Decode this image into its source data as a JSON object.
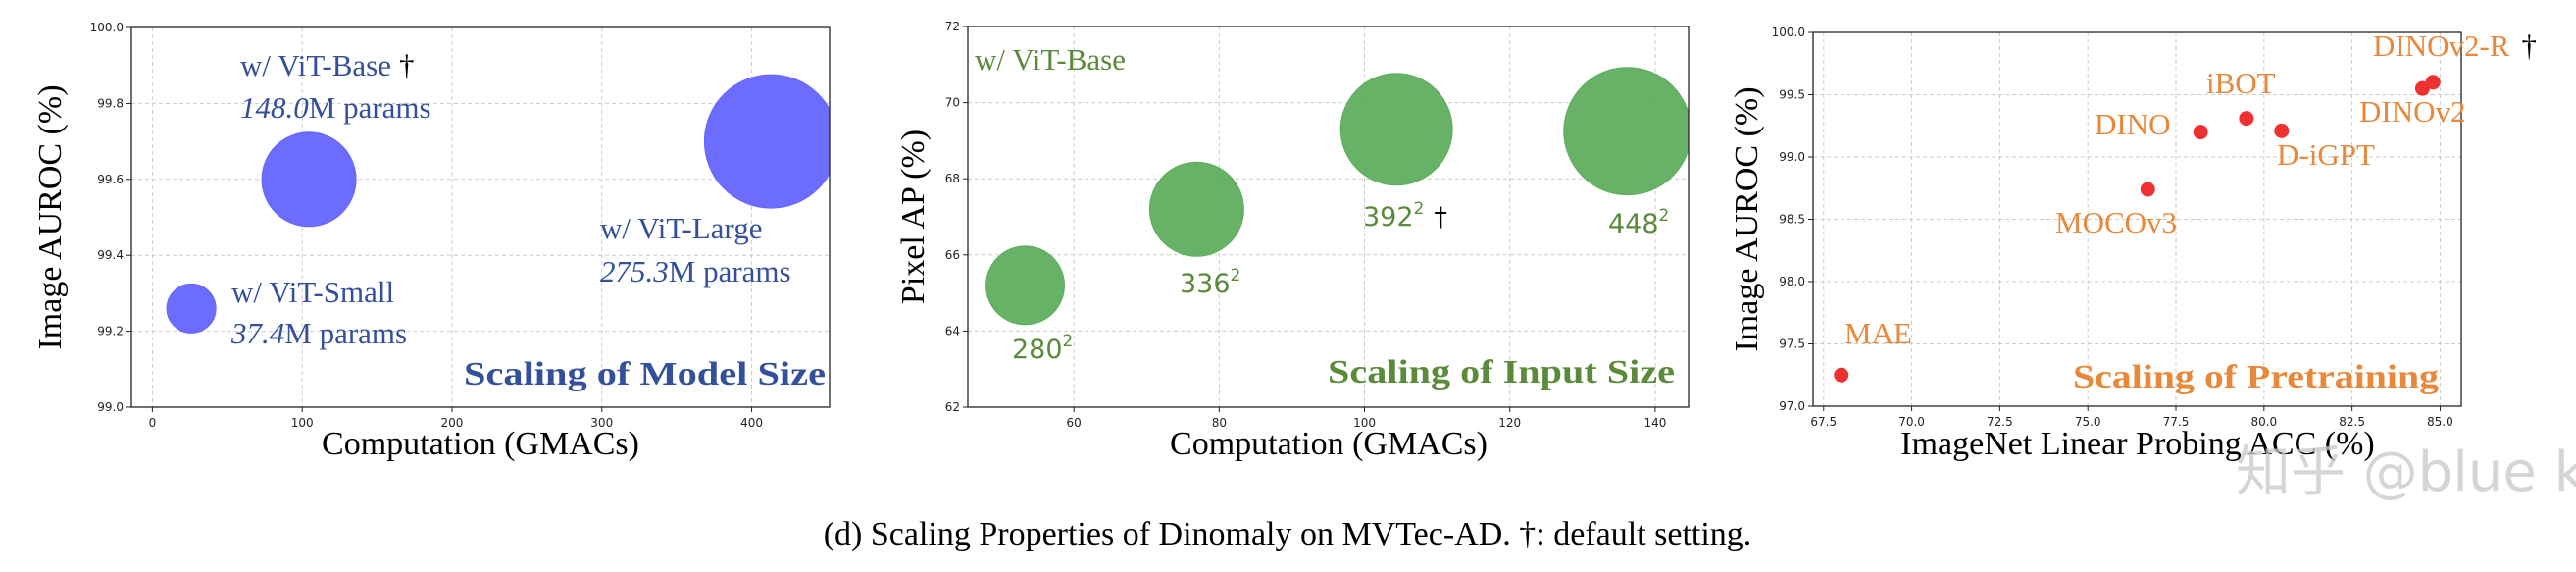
{
  "caption": "(d) Scaling Properties of Dinomaly on MVTec-AD. †: default setting.",
  "watermark": "知乎 @blue kite",
  "chart_data": [
    {
      "type": "scatter",
      "title": "Scaling of Model Size",
      "xlabel": "Computation (GMACs)",
      "ylabel": "Image AUROC (%)",
      "xlim": [
        -14,
        452
      ],
      "ylim": [
        99.0,
        100.0
      ],
      "xticks": [
        "0",
        "100",
        "200",
        "300",
        "400"
      ],
      "yticks": [
        "99.0",
        "99.2",
        "99.4",
        "99.6",
        "99.8",
        "100.0"
      ],
      "grid": true,
      "marker_color": "#6464ff",
      "text_color": "#34509a",
      "points": [
        {
          "name": "ViT-Small",
          "x": 26,
          "y": 99.26,
          "params_m": 37.4,
          "label": "w/ ViT-Small",
          "sublabel_num": "37.4",
          "sublabel_unit": "M params",
          "dagger": ""
        },
        {
          "name": "ViT-Base",
          "x": 104.5,
          "y": 99.6,
          "params_m": 148.0,
          "label": "w/ ViT-Base",
          "sublabel_num": "148.0",
          "sublabel_unit": "M params",
          "dagger": "†"
        },
        {
          "name": "ViT-Large",
          "x": 413,
          "y": 99.7,
          "params_m": 275.3,
          "label": "w/ ViT-Large",
          "sublabel_num": "275.3",
          "sublabel_unit": "M params",
          "dagger": ""
        }
      ]
    },
    {
      "type": "scatter",
      "title": "Scaling of Input Size",
      "subtitle": "w/ ViT-Base",
      "xlabel": "Computation (GMACs)",
      "ylabel": "Pixel AP (%)",
      "xlim": [
        45.4,
        144.6
      ],
      "ylim": [
        62,
        72
      ],
      "xticks": [
        "60",
        "80",
        "100",
        "120",
        "140"
      ],
      "yticks": [
        "62",
        "64",
        "66",
        "68",
        "70",
        "72"
      ],
      "grid": true,
      "marker_color": "#5fae5f",
      "text_color": "#5a8a3a",
      "points": [
        {
          "x": 53.3,
          "y": 65.2,
          "label": "280",
          "sup": "2",
          "dagger": ""
        },
        {
          "x": 76.9,
          "y": 67.2,
          "label": "336",
          "sup": "2",
          "dagger": ""
        },
        {
          "x": 104.4,
          "y": 69.3,
          "label": "392",
          "sup": "2",
          "dagger": "†"
        },
        {
          "x": 136.2,
          "y": 69.25,
          "label": "448",
          "sup": "2",
          "dagger": ""
        }
      ]
    },
    {
      "type": "scatter",
      "title": "Scaling of Pretraining",
      "xlabel": "ImageNet Linear Probing ACC (%)",
      "ylabel": "Image AUROC (%)",
      "xlim": [
        67.2,
        85.6
      ],
      "ylim": [
        97.0,
        100.0
      ],
      "xticks": [
        "67.5",
        "70.0",
        "72.5",
        "75.0",
        "77.5",
        "80.0",
        "82.5",
        "85.0"
      ],
      "yticks": [
        "97.0",
        "97.5",
        "98.0",
        "98.5",
        "99.0",
        "99.5",
        "100.0"
      ],
      "grid": true,
      "marker_color": "#ee3030",
      "text_color": "#e8883a",
      "points": [
        {
          "x": 68.0,
          "y": 97.25,
          "label": "MAE",
          "dagger": ""
        },
        {
          "x": 76.7,
          "y": 98.74,
          "label": "MOCOv3",
          "dagger": ""
        },
        {
          "x": 78.2,
          "y": 99.2,
          "label": "DINO",
          "dagger": ""
        },
        {
          "x": 79.5,
          "y": 99.31,
          "label": "iBOT",
          "dagger": ""
        },
        {
          "x": 80.5,
          "y": 99.21,
          "label": "D-iGPT",
          "dagger": ""
        },
        {
          "x": 84.5,
          "y": 99.55,
          "label": "DINOv2",
          "dagger": ""
        },
        {
          "x": 84.8,
          "y": 99.6,
          "label": "DINOv2-R",
          "dagger": "†"
        }
      ]
    }
  ]
}
